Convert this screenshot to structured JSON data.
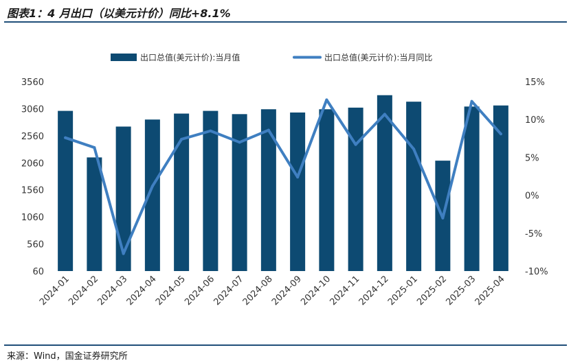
{
  "header": {
    "title": "图表1：4 月出口（以美元计价）同比+8.1%"
  },
  "footer": {
    "source": "来源：Wind，国金证券研究所"
  },
  "colors": {
    "bar": "#0d4a72",
    "line": "#3f7fc1",
    "rule": "#1f4e79"
  },
  "chart_data": {
    "type": "bar",
    "title": "图表1：4 月出口（以美元计价）同比+8.1%",
    "categories": [
      "2024-01",
      "2024-02",
      "2024-03",
      "2024-04",
      "2024-05",
      "2024-06",
      "2024-07",
      "2024-08",
      "2024-09",
      "2024-10",
      "2024-11",
      "2024-12",
      "2025-01",
      "2025-02",
      "2025-03",
      "2025-04"
    ],
    "series": [
      {
        "name": "出口总值(美元计价):当月值",
        "type": "bar",
        "axis": "left",
        "values": [
          3020,
          2160,
          2730,
          2860,
          2970,
          3020,
          2960,
          3050,
          2990,
          3050,
          3080,
          3310,
          3190,
          2100,
          3100,
          3120
        ]
      },
      {
        "name": "出口总值(美元计价):当月同比",
        "type": "line",
        "axis": "right",
        "values": [
          7.6,
          6.3,
          -7.7,
          1.2,
          7.4,
          8.5,
          7.0,
          8.6,
          2.4,
          12.6,
          6.7,
          10.7,
          6.1,
          -3.0,
          12.4,
          8.1
        ]
      }
    ],
    "y_left": {
      "ticks": [
        "3560",
        "3060",
        "2560",
        "2060",
        "1560",
        "1060",
        "560",
        "60"
      ],
      "ylim": [
        60,
        3560
      ]
    },
    "y_right": {
      "ticks": [
        "15%",
        "10%",
        "5%",
        "0%",
        "-5%",
        "-10%"
      ],
      "ylim": [
        -10,
        15
      ]
    },
    "legend": {
      "position": "top"
    }
  }
}
